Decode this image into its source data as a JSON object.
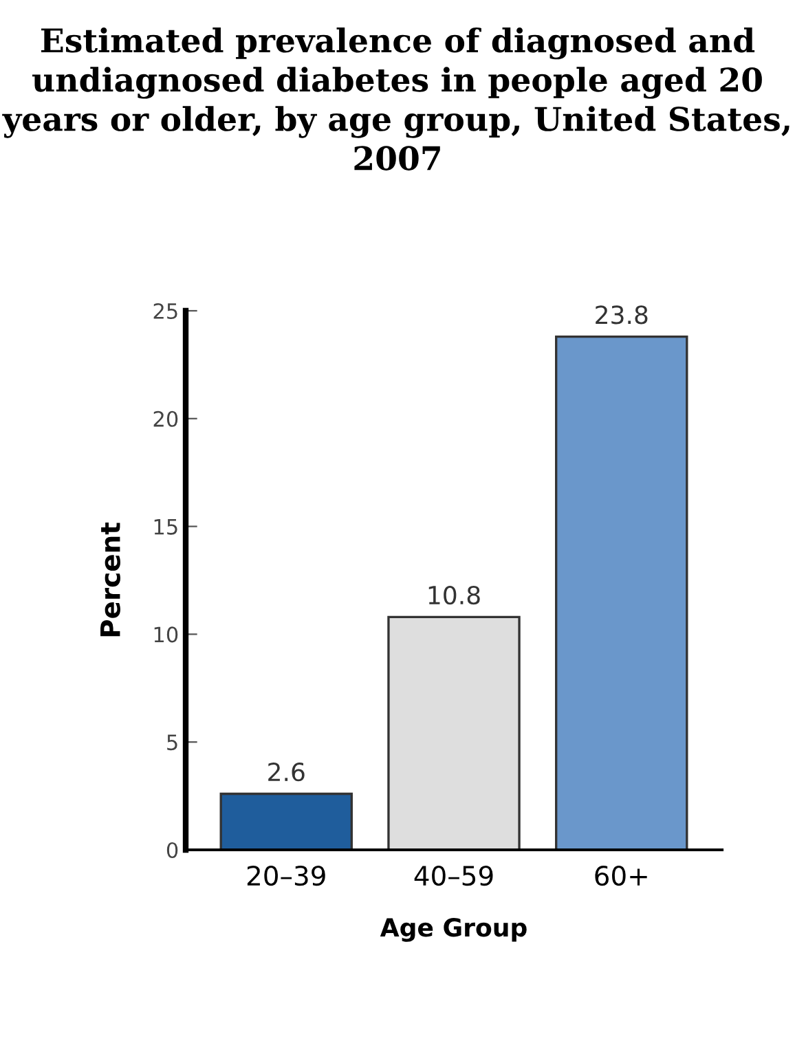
{
  "chart_data": {
    "type": "bar",
    "title": "Estimated prevalence of diagnosed and undiagnosed diabetes in people aged 20 years or older, by age group, United States, 2007",
    "categories": [
      "20–39",
      "40–59",
      "60+"
    ],
    "values": [
      2.6,
      10.8,
      23.8
    ],
    "colors": [
      "#1f5d9c",
      "#dedede",
      "#6a97cb"
    ],
    "xlabel": "Age Group",
    "ylabel": "Percent",
    "ylim": [
      0,
      25
    ],
    "yticks": [
      0,
      5,
      10,
      15,
      20,
      25
    ],
    "data_labels": true,
    "grid": false,
    "legend": false
  }
}
